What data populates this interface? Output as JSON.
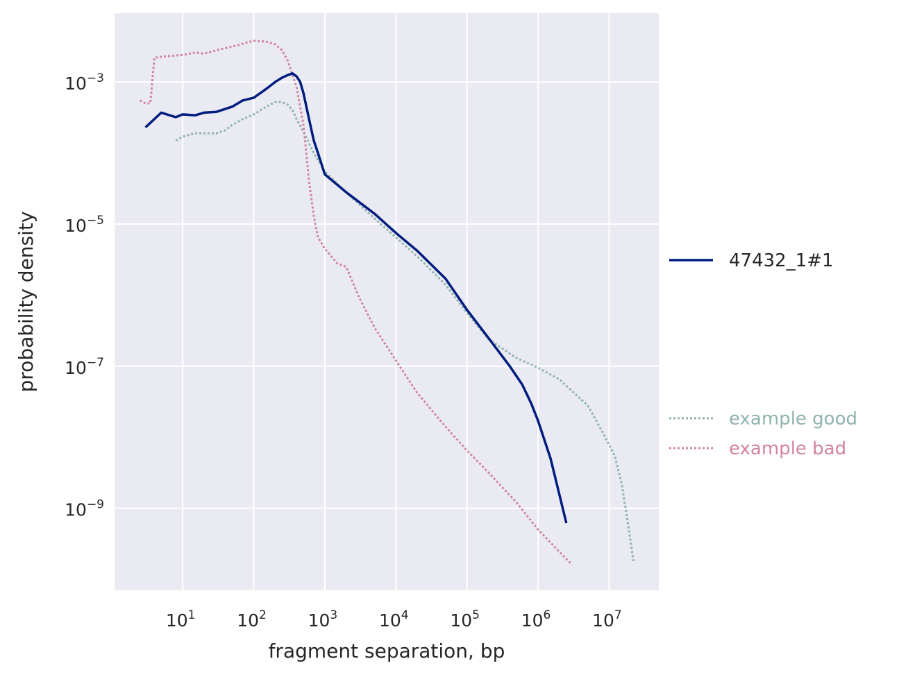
{
  "chart_data": {
    "type": "line",
    "xlabel": "fragment separation, bp",
    "ylabel": "probability density",
    "x_scale": "log",
    "y_scale": "log",
    "xlim": [
      1.1,
      50000000
    ],
    "ylim": [
      7e-11,
      0.0093
    ],
    "x_ticks": [
      {
        "base": "10",
        "exp": "1",
        "value": 10
      },
      {
        "base": "10",
        "exp": "2",
        "value": 100
      },
      {
        "base": "10",
        "exp": "3",
        "value": 1000
      },
      {
        "base": "10",
        "exp": "4",
        "value": 10000
      },
      {
        "base": "10",
        "exp": "5",
        "value": 100000
      },
      {
        "base": "10",
        "exp": "6",
        "value": 1000000
      },
      {
        "base": "10",
        "exp": "7",
        "value": 10000000
      }
    ],
    "y_ticks": [
      {
        "base": "10",
        "exp": "−3",
        "value": 0.001
      },
      {
        "base": "10",
        "exp": "−5",
        "value": 1e-05
      },
      {
        "base": "10",
        "exp": "−7",
        "value": 1e-07
      },
      {
        "base": "10",
        "exp": "−9",
        "value": 1e-09
      }
    ],
    "grid": true,
    "background": "#eaeaf2",
    "legend": [
      {
        "label": "47432_1#1",
        "color": "#001c7f",
        "style": "solid",
        "placement": "right-middle"
      },
      {
        "label": "example good",
        "color": "#8fb3ad",
        "style": "dotted",
        "placement": "right-lower"
      },
      {
        "label": "example bad",
        "color": "#d1849e",
        "style": "dotted",
        "placement": "right-lower"
      }
    ],
    "series": [
      {
        "name": "47432_1#1",
        "color": "#001c7f",
        "style": "solid",
        "x": [
          3,
          5,
          8,
          10,
          15,
          20,
          30,
          50,
          70,
          100,
          150,
          200,
          250,
          300,
          350,
          400,
          450,
          500,
          600,
          700,
          800,
          1000,
          2000,
          5000,
          10000,
          20000,
          50000,
          100000,
          200000,
          400000,
          600000,
          800000,
          1000000,
          1500000,
          2500000
        ],
        "y": [
          0.00023,
          0.00037,
          0.00032,
          0.00035,
          0.00034,
          0.00037,
          0.00038,
          0.00045,
          0.00055,
          0.0006,
          0.0008,
          0.001,
          0.00115,
          0.00125,
          0.00132,
          0.0012,
          0.001,
          0.0007,
          0.0003,
          0.00015,
          0.0001,
          5e-05,
          2.8e-05,
          1.4e-05,
          7.5e-06,
          4.2e-06,
          1.7e-06,
          6.2e-07,
          2.5e-07,
          1e-07,
          5.5e-08,
          3e-08,
          1.7e-08,
          5e-09,
          6.2e-10
        ]
      },
      {
        "name": "example good",
        "color": "#8fb3ad",
        "style": "dotted",
        "x": [
          8,
          10,
          15,
          20,
          30,
          40,
          50,
          70,
          100,
          150,
          200,
          250,
          300,
          350,
          400,
          500,
          700,
          1000,
          2000,
          5000,
          10000,
          20000,
          50000,
          100000,
          200000,
          500000,
          1000000,
          2000000,
          5000000,
          8000000,
          12000000,
          15000000,
          18000000,
          22000000
        ],
        "y": [
          0.00015,
          0.00017,
          0.00019,
          0.00019,
          0.00019,
          0.00021,
          0.00025,
          0.0003,
          0.00035,
          0.00045,
          0.00052,
          0.00052,
          0.00048,
          0.0004,
          0.0003,
          0.0002,
          0.0001,
          5.5e-05,
          2.8e-05,
          1.2e-05,
          6.5e-06,
          3.5e-06,
          1.4e-06,
          5.6e-07,
          2.4e-07,
          1.3e-07,
          9.5e-08,
          6.5e-08,
          2.8e-08,
          1.2e-08,
          5.5e-09,
          2.2e-09,
          7e-10,
          1.8e-10
        ]
      },
      {
        "name": "example bad",
        "color": "#d1849e",
        "style": "dotted",
        "x": [
          2.5,
          3,
          3.5,
          4,
          6,
          10,
          15,
          20,
          30,
          40,
          60,
          80,
          100,
          150,
          200,
          250,
          300,
          400,
          500,
          600,
          700,
          800,
          1000,
          1500,
          2000,
          3000,
          5000,
          10000,
          20000,
          50000,
          100000,
          200000,
          500000,
          1000000,
          3000000
        ],
        "y": [
          0.00055,
          0.0005,
          0.0005,
          0.0022,
          0.0023,
          0.0024,
          0.0026,
          0.0025,
          0.0028,
          0.003,
          0.0033,
          0.0036,
          0.0038,
          0.0037,
          0.0034,
          0.0028,
          0.002,
          0.00085,
          0.00025,
          4e-05,
          1.3e-05,
          6.5e-06,
          4.5e-06,
          2.8e-06,
          2.5e-06,
          9.5e-07,
          3.5e-07,
          1.2e-07,
          4.2e-08,
          1.4e-08,
          6.5e-09,
          3.2e-09,
          1.2e-09,
          5e-10,
          1.6e-10
        ]
      }
    ]
  }
}
